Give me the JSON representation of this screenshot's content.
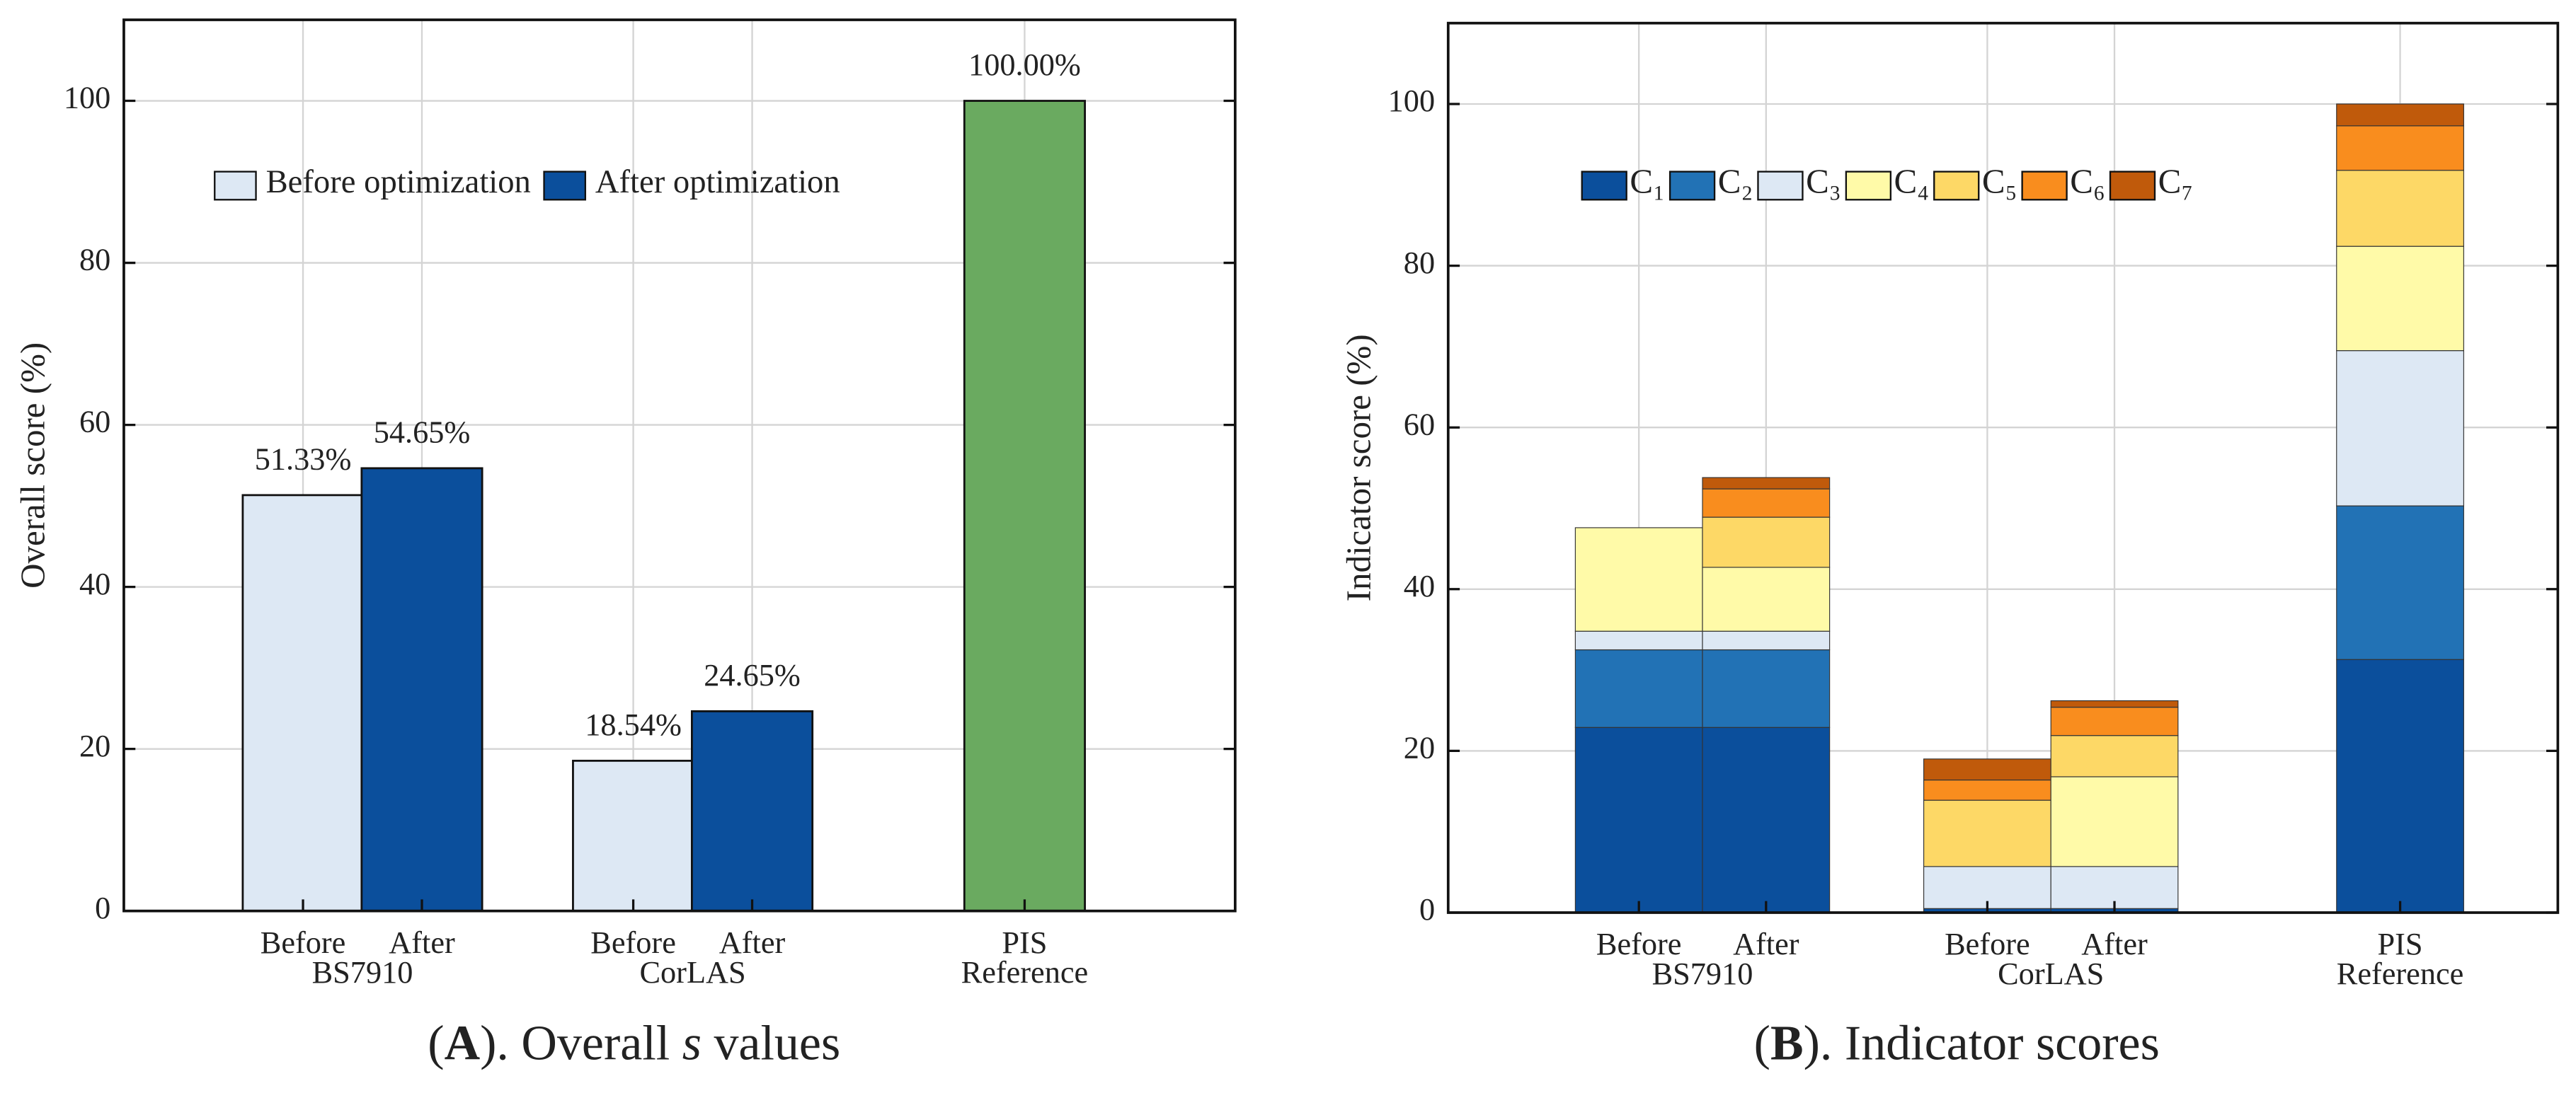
{
  "chart_data": [
    {
      "type": "bar",
      "title": [
        "(",
        "A",
        "). Overall ",
        "s",
        " values"
      ],
      "ylabel": "Overall score (%)",
      "groups": [
        {
          "name": "BS7910",
          "categories": [
            "Before",
            "After"
          ]
        },
        {
          "name": "CorLAS",
          "categories": [
            "Before",
            "After"
          ]
        },
        {
          "name": "Reference",
          "categories": [
            "PIS"
          ]
        }
      ],
      "values": [
        51.33,
        54.65,
        18.54,
        24.65,
        100
      ],
      "value_labels": [
        "51.33%",
        "54.65%",
        "18.54%",
        "24.65%",
        "100.00%"
      ],
      "colors": [
        "#dde8f4",
        "#0b4f9c",
        "#dde8f4",
        "#0b4f9c",
        "#6aaa60"
      ],
      "legend": [
        {
          "name": "Before optimization",
          "color": "#dde8f4"
        },
        {
          "name": "After optimization",
          "color": "#0b4f9c"
        }
      ],
      "legend_position": "upper left",
      "ylim": [
        0,
        110
      ],
      "yticks": [
        0,
        20,
        40,
        60,
        80,
        100
      ],
      "grid": true
    },
    {
      "type": "stacked_bar",
      "title": [
        "(",
        "B",
        "). Indicator scores"
      ],
      "ylabel": "Indicator score (%)",
      "groups": [
        {
          "name": "BS7910",
          "categories": [
            "Before",
            "After"
          ]
        },
        {
          "name": "CorLAS",
          "categories": [
            "Before",
            "After"
          ]
        },
        {
          "name": "Reference",
          "categories": [
            "PIS"
          ]
        }
      ],
      "series": [
        {
          "name": "C₁",
          "color": "#0b4f9c",
          "values": [
            22.9,
            22.9,
            0.5,
            0.5,
            31.3
          ]
        },
        {
          "name": "C₂",
          "color": "#2272b5",
          "values": [
            9.6,
            9.6,
            0,
            0,
            19.0
          ]
        },
        {
          "name": "C₃",
          "color": "#dde8f4",
          "values": [
            2.3,
            2.3,
            5.2,
            5.2,
            19.2
          ]
        },
        {
          "name": "C₄",
          "color": "#fffaa8",
          "values": [
            12.8,
            7.9,
            0,
            11.1,
            12.9
          ]
        },
        {
          "name": "C₅",
          "color": "#fdd866",
          "values": [
            0,
            6.2,
            8.2,
            5.1,
            9.4
          ]
        },
        {
          "name": "C₆",
          "color": "#f98d1e",
          "values": [
            0,
            3.5,
            2.5,
            3.5,
            5.5
          ]
        },
        {
          "name": "C₇",
          "color": "#c05a0b",
          "values": [
            0,
            1.4,
            2.6,
            0.8,
            2.7
          ]
        }
      ],
      "legend_position": "upper left",
      "ylim": [
        0,
        110
      ],
      "yticks": [
        0,
        20,
        40,
        60,
        80,
        100
      ],
      "grid": true
    }
  ]
}
